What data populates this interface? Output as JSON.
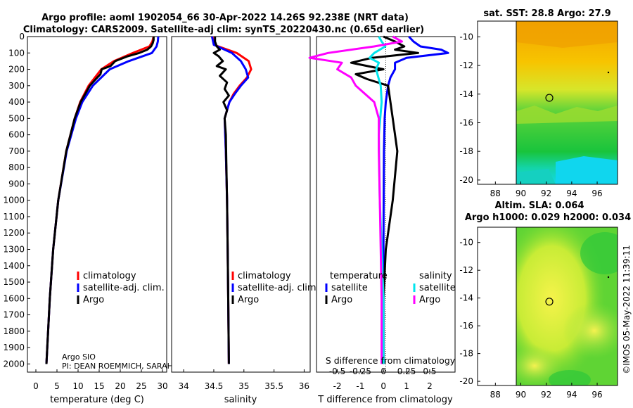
{
  "header": {
    "title_line1": "Argo profile: aoml 1902054_66 30-Apr-2022 14.26S 92.238E (NRT data)",
    "title_line2": "Climatology: CARS2009. Satellite-adj clim: synTS_20220430.nc (0.65d earlier)"
  },
  "credits": {
    "institution": "Argo SIO",
    "pi": "PI: DEAN ROEMMICH, SARAH",
    "stamp": "©IMOS 05-May-2022 11:39:11"
  },
  "colors": {
    "climatology": "#ff0000",
    "satellite": "#0000ff",
    "argo": "#000000",
    "sal_sat": "#00e5ee",
    "sal_argo": "#ff00ff"
  },
  "chart_data": [
    {
      "type": "line",
      "id": "temperature",
      "xlabel": "temperature (deg C)",
      "ylabel": "depth",
      "xlim": [
        -2,
        31
      ],
      "ylim": [
        2050,
        0
      ],
      "xticks": [
        "0",
        "5",
        "10",
        "15",
        "20",
        "25",
        "30"
      ],
      "yticks": [
        "0",
        "100",
        "200",
        "300",
        "400",
        "500",
        "600",
        "700",
        "800",
        "900",
        "1000",
        "1100",
        "1200",
        "1300",
        "1400",
        "1500",
        "1600",
        "1700",
        "1800",
        "1900",
        "2000"
      ],
      "legend": [
        "climatology",
        "satellite-adj. clim.",
        "Argo"
      ],
      "series": [
        {
          "name": "climatology",
          "depth": [
            0,
            30,
            60,
            100,
            150,
            200,
            300,
            400,
            500,
            700,
            1000,
            1300,
            1600,
            2000
          ],
          "values": [
            27.9,
            27.6,
            26.9,
            23,
            18.5,
            15.5,
            12.5,
            10.5,
            9.2,
            7.2,
            5.3,
            4.1,
            3.3,
            2.5
          ]
        },
        {
          "name": "satellite-adj. clim.",
          "depth": [
            0,
            30,
            60,
            100,
            150,
            200,
            300,
            400,
            500,
            700,
            1000,
            1300,
            1600,
            2000
          ],
          "values": [
            29,
            28.9,
            28.6,
            27.5,
            22,
            17.5,
            13.5,
            11,
            9.5,
            7.3,
            5.3,
            4.1,
            3.3,
            2.5
          ]
        },
        {
          "name": "Argo",
          "depth": [
            0,
            20,
            40,
            60,
            80,
            100,
            120,
            150,
            180,
            200,
            230,
            260,
            300,
            400,
            500,
            700,
            1000,
            1300,
            1600,
            2000
          ],
          "values": [
            27.9,
            27.9,
            27.7,
            27.3,
            26.4,
            24.5,
            21.8,
            18.8,
            17.7,
            15.6,
            15.3,
            14.2,
            12.8,
            10.6,
            9.2,
            7.2,
            5.3,
            4.1,
            3.3,
            2.5
          ]
        }
      ]
    },
    {
      "type": "line",
      "id": "salinity",
      "xlabel": "salinity",
      "xlim": [
        33.8,
        36.1
      ],
      "ylim": [
        2050,
        0
      ],
      "xticks": [
        "34",
        "34.5",
        "35",
        "35.5",
        "36"
      ],
      "legend": [
        "climatology",
        "satellite-adj. clim.",
        "Argo"
      ],
      "series": [
        {
          "name": "climatology",
          "depth": [
            0,
            50,
            100,
            150,
            200,
            250,
            300,
            350,
            400,
            500,
            700,
            1000,
            1300,
            1600,
            2000
          ],
          "values": [
            34.48,
            34.5,
            34.88,
            35.08,
            35.12,
            35.05,
            34.93,
            34.83,
            34.76,
            34.68,
            34.7,
            34.72,
            34.73,
            34.74,
            34.75
          ]
        },
        {
          "name": "satellite-adj. clim.",
          "depth": [
            0,
            50,
            100,
            150,
            200,
            250,
            300,
            350,
            400,
            500,
            700,
            1000,
            1300,
            1600,
            2000
          ],
          "values": [
            34.47,
            34.5,
            34.8,
            34.95,
            35.03,
            35.07,
            34.95,
            34.85,
            34.76,
            34.68,
            34.7,
            34.72,
            34.73,
            34.74,
            34.75
          ]
        },
        {
          "name": "Argo",
          "depth": [
            0,
            30,
            60,
            80,
            100,
            120,
            150,
            180,
            200,
            240,
            280,
            320,
            360,
            400,
            450,
            500,
            600,
            800,
            1000,
            1300,
            1600,
            2000
          ],
          "values": [
            34.52,
            34.52,
            34.55,
            34.6,
            34.5,
            34.58,
            34.65,
            34.55,
            34.7,
            34.6,
            34.72,
            34.68,
            34.75,
            34.66,
            34.72,
            34.68,
            34.7,
            34.71,
            34.72,
            34.73,
            34.74,
            34.75
          ]
        }
      ]
    },
    {
      "type": "line",
      "id": "difference",
      "xlabel": "T difference from climatology",
      "xlim": [
        -2.9,
        3.1
      ],
      "ylim": [
        2050,
        0
      ],
      "xticks": [
        "-2",
        "-1",
        "0",
        "1",
        "2"
      ],
      "secondary_xlabel": "S difference from climatology",
      "secondary_xticks": [
        "-0.5",
        "-0.25",
        "0",
        "0.25",
        "0.5"
      ],
      "legend_temperature_title": "temperature",
      "legend_salinity_title": "salinity",
      "legend_items": [
        "satellite",
        "Argo"
      ],
      "series": [
        {
          "name": "temperature satellite",
          "depth": [
            0,
            30,
            60,
            80,
            100,
            130,
            160,
            200,
            250,
            300,
            400,
            500,
            700,
            1000,
            1300,
            1600,
            2000
          ],
          "values": [
            1.1,
            1.3,
            1.6,
            2.5,
            2.8,
            1.0,
            0.5,
            0.5,
            0.3,
            0.2,
            0.1,
            0.05,
            0.02,
            0.01,
            0.0,
            0.0,
            0.0
          ]
        },
        {
          "name": "temperature Argo",
          "depth": [
            0,
            30,
            60,
            80,
            100,
            130,
            160,
            200,
            230,
            260,
            300,
            400,
            500,
            700,
            1000,
            1300,
            1600,
            2000
          ],
          "values": [
            0.0,
            0.5,
            0.9,
            0.5,
            1.5,
            -0.5,
            -1.4,
            0.0,
            -1.2,
            -0.7,
            0.2,
            0.3,
            0.4,
            0.6,
            0.4,
            0.1,
            0.0,
            0.0
          ]
        },
        {
          "name": "salinity satellite",
          "depth": [
            0,
            30,
            60,
            100,
            130,
            160,
            200,
            260,
            300,
            400,
            600,
            1000,
            1300,
            1600,
            2000
          ],
          "values": [
            -0.05,
            -0.02,
            0.02,
            -0.1,
            -0.15,
            -0.05,
            -0.08,
            -0.05,
            -0.03,
            -0.02,
            -0.05,
            -0.04,
            -0.02,
            0.0,
            0.0
          ]
        },
        {
          "name": "salinity Argo",
          "depth": [
            0,
            30,
            60,
            100,
            130,
            160,
            200,
            250,
            300,
            400,
            500,
            700,
            1000,
            1300,
            1600,
            2000
          ],
          "values": [
            0.1,
            0.2,
            -0.1,
            -0.6,
            -0.8,
            -0.45,
            -0.5,
            -0.35,
            -0.3,
            -0.1,
            -0.05,
            -0.05,
            -0.04,
            -0.03,
            -0.02,
            -0.02
          ]
        }
      ]
    },
    {
      "type": "heatmap",
      "id": "sst-map",
      "title": "sat. SST: 28.8 Argo: 27.9",
      "xticks": [
        "88",
        "90",
        "92",
        "94",
        "96"
      ],
      "yticks": [
        "-10",
        "-12",
        "-14",
        "-16",
        "-18",
        "-20"
      ],
      "xlim": [
        86.6,
        97.6
      ],
      "ylim": [
        -20.3,
        -8.9
      ],
      "argo_position": {
        "lon": 92.24,
        "lat": -14.26
      }
    },
    {
      "type": "heatmap",
      "id": "sla-map",
      "title": "Altim. SLA: 0.064",
      "subtitle": "Argo h1000: 0.029 h2000: 0.034",
      "xticks": [
        "88",
        "90",
        "92",
        "94",
        "96"
      ],
      "yticks": [
        "-10",
        "-12",
        "-14",
        "-16",
        "-18",
        "-20"
      ],
      "xlim": [
        86.6,
        97.6
      ],
      "ylim": [
        -20.3,
        -8.9
      ],
      "argo_position": {
        "lon": 92.24,
        "lat": -14.26
      }
    }
  ]
}
